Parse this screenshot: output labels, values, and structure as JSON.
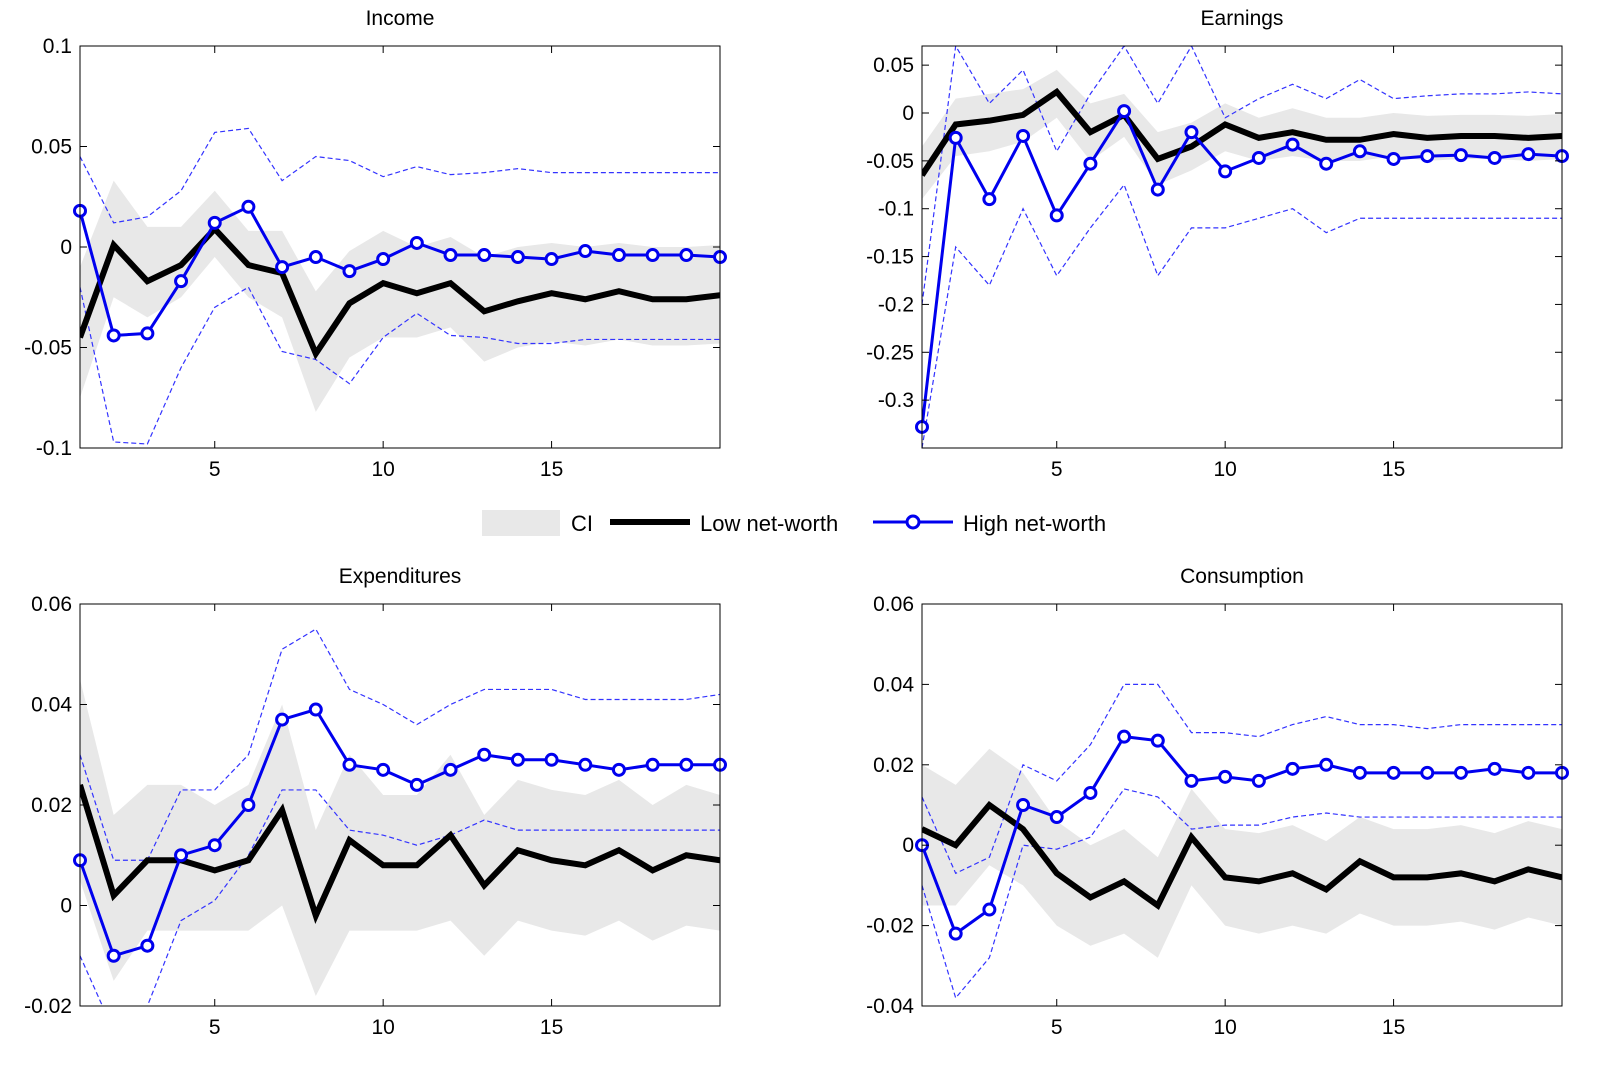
{
  "legend": {
    "ci_label": "CI",
    "low_label": "Low net-worth",
    "high_label": "High net-worth"
  },
  "colors": {
    "low": "#000000",
    "high": "#0000ee",
    "band": "#e8e8e8",
    "high_ci": "#3333ff"
  },
  "chart_data": [
    {
      "type": "line",
      "title": "Income",
      "xlim": [
        1,
        20
      ],
      "ylim": [
        -0.1,
        0.1
      ],
      "x_ticks": [
        5,
        10,
        15
      ],
      "y_ticks": [
        -0.1,
        -0.05,
        0,
        0.05,
        0.1
      ],
      "y_tick_labels": [
        "-0.1",
        "-0.05",
        "0",
        "0.05",
        "0.1"
      ],
      "x": [
        1,
        2,
        3,
        4,
        5,
        6,
        7,
        8,
        9,
        10,
        11,
        12,
        13,
        14,
        15,
        16,
        17,
        18,
        19,
        20
      ],
      "series": [
        {
          "name": "Low net-worth",
          "role": "low",
          "values": [
            -0.045,
            0.001,
            -0.017,
            -0.009,
            0.009,
            -0.009,
            -0.013,
            -0.053,
            -0.028,
            -0.018,
            -0.023,
            -0.018,
            -0.032,
            -0.027,
            -0.023,
            -0.026,
            -0.022,
            -0.026,
            -0.026,
            -0.024
          ]
        },
        {
          "name": "High net-worth",
          "role": "high",
          "values": [
            0.018,
            -0.044,
            -0.043,
            -0.017,
            0.012,
            0.02,
            -0.01,
            -0.005,
            -0.012,
            -0.006,
            0.002,
            -0.004,
            -0.004,
            -0.005,
            -0.006,
            -0.002,
            -0.004,
            -0.004,
            -0.004,
            -0.005
          ]
        }
      ],
      "ci_band": {
        "lower": [
          -0.075,
          -0.025,
          -0.035,
          -0.025,
          -0.005,
          -0.025,
          -0.035,
          -0.082,
          -0.055,
          -0.045,
          -0.045,
          -0.04,
          -0.057,
          -0.05,
          -0.047,
          -0.049,
          -0.046,
          -0.049,
          -0.049,
          -0.048
        ],
        "upper": [
          -0.01,
          0.033,
          0.01,
          0.01,
          0.028,
          0.008,
          0.008,
          -0.022,
          -0.002,
          0.008,
          0.0,
          0.005,
          -0.005,
          0.0,
          0.002,
          0.0,
          0.002,
          0.0,
          0.0,
          0.001
        ]
      },
      "high_ci": {
        "lower": [
          -0.02,
          -0.097,
          -0.098,
          -0.06,
          -0.03,
          -0.02,
          -0.052,
          -0.056,
          -0.068,
          -0.045,
          -0.033,
          -0.044,
          -0.045,
          -0.048,
          -0.048,
          -0.046,
          -0.046,
          -0.046,
          -0.046,
          -0.046
        ],
        "upper": [
          0.045,
          0.012,
          0.015,
          0.028,
          0.057,
          0.059,
          0.033,
          0.045,
          0.043,
          0.035,
          0.04,
          0.036,
          0.037,
          0.039,
          0.037,
          0.037,
          0.037,
          0.037,
          0.037,
          0.037
        ]
      }
    },
    {
      "type": "line",
      "title": "Earnings",
      "xlim": [
        1,
        20
      ],
      "ylim": [
        -0.35,
        0.07
      ],
      "x_ticks": [
        5,
        10,
        15
      ],
      "y_ticks": [
        -0.3,
        -0.25,
        -0.2,
        -0.15,
        -0.1,
        -0.05,
        0,
        0.05
      ],
      "y_tick_labels": [
        "-0.3",
        "-0.25",
        "-0.2",
        "-0.15",
        "-0.1",
        "-0.05",
        "0",
        "0.05"
      ],
      "x": [
        1,
        2,
        3,
        4,
        5,
        6,
        7,
        8,
        9,
        10,
        11,
        12,
        13,
        14,
        15,
        16,
        17,
        18,
        19,
        20
      ],
      "series": [
        {
          "name": "Low net-worth",
          "role": "low",
          "values": [
            -0.065,
            -0.012,
            -0.008,
            -0.002,
            0.022,
            -0.02,
            -0.002,
            -0.048,
            -0.035,
            -0.012,
            -0.026,
            -0.02,
            -0.028,
            -0.028,
            -0.022,
            -0.026,
            -0.024,
            -0.024,
            -0.026,
            -0.024
          ]
        },
        {
          "name": "High net-worth",
          "role": "high",
          "values": [
            -0.328,
            -0.026,
            -0.09,
            -0.024,
            -0.107,
            -0.053,
            0.002,
            -0.08,
            -0.02,
            -0.061,
            -0.047,
            -0.033,
            -0.053,
            -0.04,
            -0.048,
            -0.045,
            -0.044,
            -0.047,
            -0.043,
            -0.045
          ]
        }
      ],
      "ci_band": {
        "lower": [
          -0.09,
          -0.045,
          -0.04,
          -0.03,
          -0.005,
          -0.05,
          -0.025,
          -0.075,
          -0.06,
          -0.04,
          -0.05,
          -0.045,
          -0.05,
          -0.05,
          -0.045,
          -0.05,
          -0.048,
          -0.048,
          -0.05,
          -0.048
        ],
        "upper": [
          -0.035,
          0.015,
          0.02,
          0.025,
          0.045,
          0.01,
          0.02,
          -0.02,
          -0.01,
          0.01,
          -0.005,
          0.005,
          -0.005,
          -0.005,
          0.0,
          -0.003,
          -0.002,
          -0.002,
          -0.003,
          -0.001
        ]
      },
      "high_ci": {
        "lower": [
          -0.35,
          -0.14,
          -0.18,
          -0.1,
          -0.17,
          -0.12,
          -0.075,
          -0.17,
          -0.12,
          -0.12,
          -0.11,
          -0.1,
          -0.125,
          -0.11,
          -0.11,
          -0.11,
          -0.11,
          -0.11,
          -0.11,
          -0.11
        ],
        "upper": [
          -0.2,
          0.07,
          0.01,
          0.045,
          -0.04,
          0.02,
          0.07,
          0.01,
          0.07,
          -0.005,
          0.015,
          0.03,
          0.015,
          0.035,
          0.015,
          0.018,
          0.02,
          0.02,
          0.022,
          0.02
        ]
      }
    },
    {
      "type": "line",
      "title": "Expenditures",
      "xlim": [
        1,
        20
      ],
      "ylim": [
        -0.02,
        0.06
      ],
      "x_ticks": [
        5,
        10,
        15
      ],
      "y_ticks": [
        -0.02,
        0,
        0.02,
        0.04,
        0.06
      ],
      "y_tick_labels": [
        "-0.02",
        "0",
        "0.02",
        "0.04",
        "0.06"
      ],
      "x": [
        1,
        2,
        3,
        4,
        5,
        6,
        7,
        8,
        9,
        10,
        11,
        12,
        13,
        14,
        15,
        16,
        17,
        18,
        19,
        20
      ],
      "series": [
        {
          "name": "Low net-worth",
          "role": "low",
          "values": [
            0.024,
            0.002,
            0.009,
            0.009,
            0.007,
            0.009,
            0.019,
            -0.002,
            0.013,
            0.008,
            0.008,
            0.014,
            0.004,
            0.011,
            0.009,
            0.008,
            0.011,
            0.007,
            0.01,
            0.009
          ]
        },
        {
          "name": "High net-worth",
          "role": "high",
          "values": [
            0.009,
            -0.01,
            -0.008,
            0.01,
            0.012,
            0.02,
            0.037,
            0.039,
            0.028,
            0.027,
            0.024,
            0.027,
            0.03,
            0.029,
            0.029,
            0.028,
            0.027,
            0.028,
            0.028,
            0.028
          ]
        }
      ],
      "ci_band": {
        "lower": [
          0.005,
          -0.015,
          -0.005,
          -0.005,
          -0.005,
          -0.005,
          0.0,
          -0.018,
          -0.005,
          -0.005,
          -0.005,
          -0.003,
          -0.01,
          -0.003,
          -0.005,
          -0.006,
          -0.003,
          -0.007,
          -0.004,
          -0.005
        ],
        "upper": [
          0.045,
          0.018,
          0.024,
          0.024,
          0.02,
          0.024,
          0.04,
          0.015,
          0.03,
          0.022,
          0.022,
          0.03,
          0.018,
          0.025,
          0.023,
          0.022,
          0.025,
          0.02,
          0.024,
          0.022
        ]
      },
      "high_ci": {
        "lower": [
          -0.01,
          -0.025,
          -0.02,
          -0.003,
          0.001,
          0.01,
          0.023,
          0.023,
          0.015,
          0.014,
          0.012,
          0.014,
          0.017,
          0.015,
          0.015,
          0.015,
          0.015,
          0.015,
          0.015,
          0.015
        ],
        "upper": [
          0.03,
          0.009,
          0.009,
          0.023,
          0.023,
          0.03,
          0.051,
          0.055,
          0.043,
          0.04,
          0.036,
          0.04,
          0.043,
          0.043,
          0.043,
          0.041,
          0.041,
          0.041,
          0.041,
          0.042
        ]
      }
    },
    {
      "type": "line",
      "title": "Consumption",
      "xlim": [
        1,
        20
      ],
      "ylim": [
        -0.04,
        0.06
      ],
      "x_ticks": [
        5,
        10,
        15
      ],
      "y_ticks": [
        -0.04,
        -0.02,
        0,
        0.02,
        0.04,
        0.06
      ],
      "y_tick_labels": [
        "-0.04",
        "-0.02",
        "0",
        "0.02",
        "0.04",
        "0.06"
      ],
      "x": [
        1,
        2,
        3,
        4,
        5,
        6,
        7,
        8,
        9,
        10,
        11,
        12,
        13,
        14,
        15,
        16,
        17,
        18,
        19,
        20
      ],
      "series": [
        {
          "name": "Low net-worth",
          "role": "low",
          "values": [
            0.004,
            0.0,
            0.01,
            0.004,
            -0.007,
            -0.013,
            -0.009,
            -0.015,
            0.002,
            -0.008,
            -0.009,
            -0.007,
            -0.011,
            -0.004,
            -0.008,
            -0.008,
            -0.007,
            -0.009,
            -0.006,
            -0.008
          ]
        },
        {
          "name": "High net-worth",
          "role": "high",
          "values": [
            0.0,
            -0.022,
            -0.016,
            0.01,
            0.007,
            0.013,
            0.027,
            0.026,
            0.016,
            0.017,
            0.016,
            0.019,
            0.02,
            0.018,
            0.018,
            0.018,
            0.018,
            0.019,
            0.018,
            0.018
          ]
        }
      ],
      "ci_band": {
        "lower": [
          -0.015,
          -0.015,
          -0.005,
          -0.01,
          -0.02,
          -0.025,
          -0.022,
          -0.028,
          -0.01,
          -0.02,
          -0.022,
          -0.02,
          -0.022,
          -0.017,
          -0.02,
          -0.02,
          -0.019,
          -0.021,
          -0.018,
          -0.02
        ],
        "upper": [
          0.02,
          0.015,
          0.024,
          0.018,
          0.006,
          0.0,
          0.004,
          -0.003,
          0.014,
          0.004,
          0.003,
          0.005,
          0.001,
          0.007,
          0.004,
          0.004,
          0.005,
          0.003,
          0.006,
          0.004
        ]
      },
      "high_ci": {
        "lower": [
          -0.01,
          -0.038,
          -0.028,
          0.0,
          -0.001,
          0.002,
          0.014,
          0.012,
          0.004,
          0.005,
          0.005,
          0.007,
          0.008,
          0.007,
          0.007,
          0.007,
          0.007,
          0.007,
          0.007,
          0.007
        ],
        "upper": [
          0.012,
          -0.007,
          -0.003,
          0.02,
          0.016,
          0.025,
          0.04,
          0.04,
          0.028,
          0.028,
          0.027,
          0.03,
          0.032,
          0.03,
          0.03,
          0.029,
          0.03,
          0.03,
          0.03,
          0.03
        ]
      }
    }
  ]
}
